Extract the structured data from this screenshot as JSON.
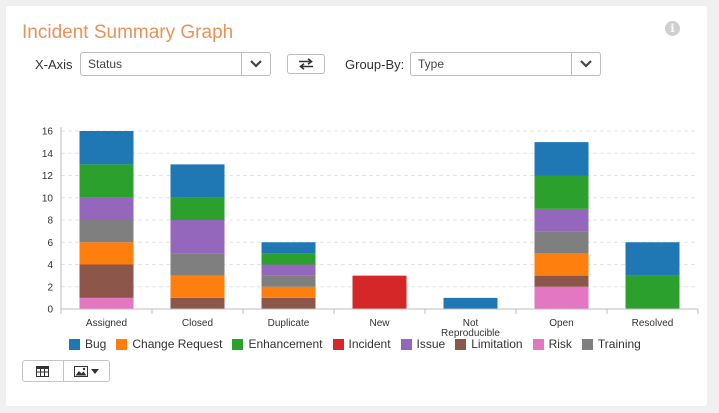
{
  "title": "Incident Summary Graph",
  "controls": {
    "xaxis_label": "X-Axis",
    "xaxis_value": "Status",
    "groupby_label": "Group-By:",
    "groupby_value": "Type"
  },
  "icons": {
    "info": "info-icon",
    "dropdown": "chevron-down-icon",
    "swap": "swap-arrows-icon",
    "table": "table-icon",
    "image": "image-icon"
  },
  "chart_data": {
    "type": "bar",
    "stacked": true,
    "categories": [
      "Assigned",
      "Closed",
      "Duplicate",
      "New",
      "Not Reproducible",
      "Open",
      "Resolved"
    ],
    "ylim": [
      0,
      16
    ],
    "yticks": [
      0,
      2,
      4,
      6,
      8,
      10,
      12,
      14,
      16
    ],
    "grid": true,
    "legend_position": "bottom",
    "series": [
      {
        "name": "Bug",
        "color": "#1f77b4",
        "values": [
          3,
          3,
          1,
          0,
          1,
          3,
          3
        ]
      },
      {
        "name": "Change Request",
        "color": "#ff7f0e",
        "values": [
          2,
          2,
          1,
          0,
          0,
          2,
          0
        ]
      },
      {
        "name": "Enhancement",
        "color": "#2ca02c",
        "values": [
          3,
          2,
          1,
          0,
          0,
          3,
          3
        ]
      },
      {
        "name": "Incident",
        "color": "#d62728",
        "values": [
          0,
          0,
          0,
          3,
          0,
          0,
          0
        ]
      },
      {
        "name": "Issue",
        "color": "#9467bd",
        "values": [
          2,
          3,
          1,
          0,
          0,
          2,
          0
        ]
      },
      {
        "name": "Limitation",
        "color": "#8c564b",
        "values": [
          3,
          1,
          1,
          0,
          0,
          1,
          0
        ]
      },
      {
        "name": "Risk",
        "color": "#e377c2",
        "values": [
          1,
          0,
          0,
          0,
          0,
          2,
          0
        ]
      },
      {
        "name": "Training",
        "color": "#7f7f7f",
        "values": [
          2,
          2,
          1,
          0,
          0,
          2,
          0
        ]
      }
    ],
    "stack_order": [
      "Risk",
      "Limitation",
      "Change Request",
      "Training",
      "Issue",
      "Enhancement",
      "Bug",
      "Incident"
    ]
  }
}
